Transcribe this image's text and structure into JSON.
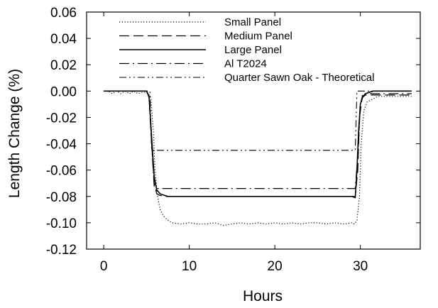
{
  "chart_data": {
    "type": "line",
    "title": "",
    "xlabel": "Hours",
    "ylabel": "Length Change (%)",
    "xlim": [
      -2,
      37
    ],
    "ylim": [
      -0.12,
      0.06
    ],
    "xticks": [
      "0",
      "10",
      "20",
      "30"
    ],
    "xtick_values": [
      0,
      10,
      20,
      30
    ],
    "yticks": [
      "0.06",
      "0.04",
      "0.02",
      "0.00",
      "-0.02",
      "-0.04",
      "-0.06",
      "-0.08",
      "-0.10",
      "-0.12"
    ],
    "ytick_values": [
      0.06,
      0.04,
      0.02,
      0.0,
      -0.02,
      -0.04,
      -0.06,
      -0.08,
      -0.1,
      -0.12
    ],
    "grid": false,
    "legend_position": "top-right",
    "series": [
      {
        "name": "Small Panel",
        "dash": "dotted",
        "x": [
          0,
          0.5,
          1,
          1.5,
          2,
          2.5,
          3,
          3.5,
          4,
          4.5,
          5,
          5.2,
          5.5,
          5.8,
          6,
          6.3,
          6.6,
          7,
          7.5,
          8,
          9,
          10,
          11,
          12,
          13,
          14,
          15,
          16,
          17,
          18,
          19,
          20,
          21,
          22,
          23,
          24,
          25,
          26,
          27,
          28,
          29,
          29.3,
          29.6,
          29.9,
          30.1,
          30.4,
          30.8,
          31.5,
          32,
          33,
          34,
          35,
          36
        ],
        "y": [
          0.0,
          0.0,
          -0.002,
          0.0,
          -0.002,
          0.0,
          -0.002,
          0.0,
          -0.002,
          -0.001,
          -0.001,
          -0.002,
          -0.005,
          -0.03,
          -0.06,
          -0.08,
          -0.09,
          -0.095,
          -0.098,
          -0.1,
          -0.101,
          -0.1,
          -0.101,
          -0.101,
          -0.1,
          -0.102,
          -0.101,
          -0.1,
          -0.101,
          -0.1,
          -0.101,
          -0.1,
          -0.101,
          -0.1,
          -0.101,
          -0.1,
          -0.1,
          -0.101,
          -0.1,
          -0.101,
          -0.1,
          -0.101,
          -0.098,
          -0.08,
          -0.04,
          -0.015,
          -0.008,
          -0.006,
          -0.004,
          -0.004,
          -0.004,
          -0.004,
          -0.004
        ]
      },
      {
        "name": "Medium Panel",
        "dash": "long-dash",
        "x": [
          0,
          1,
          2,
          3,
          4,
          5,
          5.3,
          5.6,
          5.9,
          6.2,
          6.5,
          7,
          8,
          10,
          12,
          14,
          16,
          18,
          20,
          22,
          24,
          26,
          28,
          29.4,
          29.7,
          29.9,
          30.2,
          30.6,
          31,
          32,
          33,
          34,
          35,
          36
        ],
        "y": [
          0.0,
          0.0,
          0.0,
          0.0,
          0.0,
          0.0,
          -0.005,
          -0.04,
          -0.07,
          -0.078,
          -0.079,
          -0.08,
          -0.08,
          -0.08,
          -0.08,
          -0.08,
          -0.08,
          -0.08,
          -0.08,
          -0.08,
          -0.08,
          -0.08,
          -0.08,
          -0.08,
          -0.06,
          -0.02,
          -0.005,
          -0.003,
          -0.003,
          -0.003,
          -0.003,
          -0.003,
          -0.003,
          -0.003
        ]
      },
      {
        "name": "Large Panel",
        "dash": "solid",
        "x": [
          0,
          1,
          2,
          3,
          4,
          5,
          5.3,
          5.6,
          5.9,
          6.2,
          6.6,
          7,
          7.5,
          8,
          8.5,
          9,
          9.5,
          10,
          11,
          12,
          13,
          14,
          15,
          16,
          17,
          18,
          19,
          20,
          21,
          22,
          23,
          24,
          25,
          26,
          27,
          28,
          29,
          29.4,
          29.6,
          29.8,
          30,
          30.3,
          30.6,
          31,
          31.5,
          32,
          32.5,
          33,
          33.5,
          34,
          34.5,
          35,
          35.5,
          36
        ],
        "y": [
          0.0,
          0.0,
          0.0,
          0.0,
          0.0,
          0.0,
          -0.004,
          -0.035,
          -0.065,
          -0.075,
          -0.078,
          -0.079,
          -0.08,
          -0.08,
          -0.08,
          -0.08,
          -0.08,
          -0.08,
          -0.08,
          -0.08,
          -0.08,
          -0.08,
          -0.08,
          -0.08,
          -0.08,
          -0.08,
          -0.08,
          -0.08,
          -0.08,
          -0.08,
          -0.08,
          -0.08,
          -0.08,
          -0.08,
          -0.08,
          -0.08,
          -0.08,
          -0.081,
          -0.06,
          -0.03,
          -0.01,
          -0.004,
          -0.002,
          -0.001,
          0.0,
          0.0,
          0.0,
          0.0,
          0.0,
          0.0,
          0.0,
          0.0,
          0.0,
          0.0
        ]
      },
      {
        "name": "Al T2024",
        "dash": "dash-dot",
        "x": [
          0,
          1,
          2,
          3,
          4,
          5,
          5.3,
          5.6,
          5.9,
          6.2,
          6.5,
          7,
          10,
          15,
          20,
          25,
          29.4,
          29.7,
          30,
          30.3,
          31,
          33,
          36
        ],
        "y": [
          0.0,
          0.0,
          0.0,
          0.0,
          0.0,
          0.0,
          -0.004,
          -0.04,
          -0.072,
          -0.074,
          -0.074,
          -0.074,
          -0.074,
          -0.074,
          -0.074,
          -0.074,
          -0.074,
          -0.05,
          -0.01,
          -0.002,
          -0.002,
          -0.002,
          -0.002
        ]
      },
      {
        "name": "Quarter Sawn Oak - Theoretical",
        "dash": "dash-dot-dot",
        "x": [
          0,
          5,
          5.4,
          5.6,
          10,
          20,
          29.4,
          29.6,
          30,
          36
        ],
        "y": [
          0.0,
          0.0,
          0.0,
          -0.045,
          -0.045,
          -0.045,
          -0.045,
          0.0,
          0.0,
          0.0
        ]
      }
    ]
  }
}
